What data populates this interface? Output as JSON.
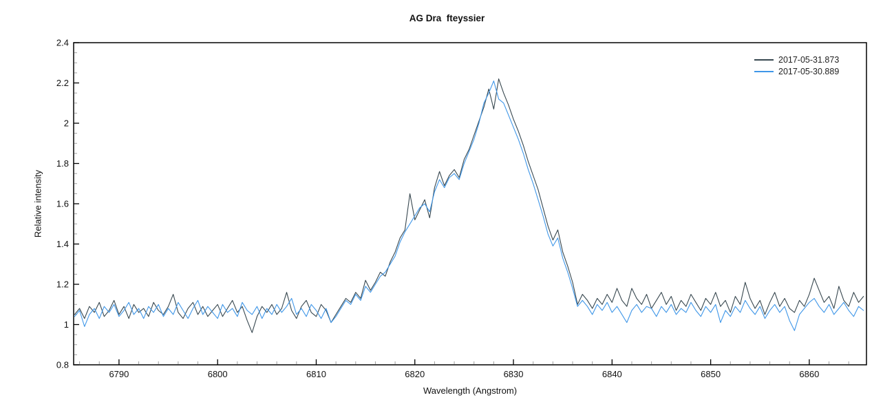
{
  "chart_data": {
    "type": "line",
    "title": "AG Dra  fteyssier",
    "xlabel": "Wavelength (Angstrom)",
    "ylabel": "Relative intensity",
    "xlim": [
      6785.4,
      6865.8
    ],
    "ylim": [
      0.8,
      2.4
    ],
    "x_major_ticks": [
      6790,
      6800,
      6810,
      6820,
      6830,
      6840,
      6850,
      6860
    ],
    "x_minor_step": 2,
    "y_major_ticks": [
      0.8,
      1,
      1.2,
      1.4,
      1.6,
      1.8,
      2,
      2.2,
      2.4
    ],
    "y_minor_step": 0.05,
    "grid": false,
    "legend_position": "top-right",
    "x_start": 6785.5,
    "x_step": 0.5,
    "series": [
      {
        "name": "2017-05-31.873",
        "color": "#37474F",
        "values": [
          1.05,
          1.08,
          1.03,
          1.09,
          1.06,
          1.11,
          1.04,
          1.07,
          1.12,
          1.05,
          1.09,
          1.03,
          1.1,
          1.06,
          1.08,
          1.04,
          1.11,
          1.07,
          1.05,
          1.09,
          1.15,
          1.06,
          1.03,
          1.08,
          1.11,
          1.05,
          1.09,
          1.04,
          1.07,
          1.1,
          1.04,
          1.08,
          1.12,
          1.06,
          1.09,
          1.02,
          0.96,
          1.04,
          1.09,
          1.06,
          1.1,
          1.05,
          1.08,
          1.16,
          1.07,
          1.03,
          1.09,
          1.12,
          1.06,
          1.04,
          1.1,
          1.07,
          1.01,
          1.05,
          1.09,
          1.13,
          1.11,
          1.16,
          1.13,
          1.22,
          1.17,
          1.21,
          1.26,
          1.24,
          1.31,
          1.36,
          1.43,
          1.47,
          1.65,
          1.52,
          1.57,
          1.62,
          1.53,
          1.68,
          1.76,
          1.69,
          1.74,
          1.77,
          1.73,
          1.82,
          1.87,
          1.94,
          2.01,
          2.08,
          2.17,
          2.07,
          2.22,
          2.15,
          2.09,
          2.02,
          1.96,
          1.89,
          1.81,
          1.74,
          1.67,
          1.58,
          1.49,
          1.42,
          1.47,
          1.36,
          1.29,
          1.21,
          1.1,
          1.15,
          1.12,
          1.08,
          1.13,
          1.1,
          1.15,
          1.11,
          1.18,
          1.12,
          1.09,
          1.18,
          1.13,
          1.1,
          1.15,
          1.08,
          1.12,
          1.16,
          1.1,
          1.14,
          1.07,
          1.12,
          1.09,
          1.15,
          1.11,
          1.07,
          1.13,
          1.1,
          1.16,
          1.09,
          1.12,
          1.06,
          1.14,
          1.1,
          1.21,
          1.13,
          1.08,
          1.12,
          1.05,
          1.11,
          1.16,
          1.09,
          1.13,
          1.08,
          1.06,
          1.12,
          1.09,
          1.15,
          1.23,
          1.17,
          1.11,
          1.14,
          1.08,
          1.19,
          1.12,
          1.09,
          1.16,
          1.11,
          1.14
        ]
      },
      {
        "name": "2017-05-30.889",
        "color": "#3E96E8",
        "values": [
          1.04,
          1.07,
          0.99,
          1.05,
          1.08,
          1.03,
          1.09,
          1.06,
          1.1,
          1.04,
          1.07,
          1.11,
          1.05,
          1.08,
          1.03,
          1.09,
          1.06,
          1.1,
          1.04,
          1.08,
          1.05,
          1.11,
          1.07,
          1.03,
          1.08,
          1.12,
          1.05,
          1.09,
          1.06,
          1.03,
          1.1,
          1.06,
          1.08,
          1.04,
          1.11,
          1.07,
          1.05,
          1.09,
          1.03,
          1.08,
          1.05,
          1.1,
          1.06,
          1.09,
          1.13,
          1.05,
          1.08,
          1.04,
          1.1,
          1.07,
          1.03,
          1.08,
          1.01,
          1.04,
          1.08,
          1.12,
          1.1,
          1.15,
          1.12,
          1.19,
          1.16,
          1.2,
          1.24,
          1.26,
          1.3,
          1.34,
          1.41,
          1.46,
          1.5,
          1.54,
          1.58,
          1.6,
          1.56,
          1.66,
          1.72,
          1.68,
          1.73,
          1.75,
          1.72,
          1.8,
          1.86,
          1.92,
          2.0,
          2.1,
          2.15,
          2.21,
          2.12,
          2.1,
          2.04,
          1.98,
          1.92,
          1.85,
          1.77,
          1.7,
          1.62,
          1.54,
          1.45,
          1.39,
          1.43,
          1.33,
          1.26,
          1.18,
          1.09,
          1.12,
          1.09,
          1.05,
          1.1,
          1.07,
          1.11,
          1.06,
          1.09,
          1.05,
          1.01,
          1.07,
          1.1,
          1.06,
          1.09,
          1.08,
          1.04,
          1.09,
          1.06,
          1.1,
          1.05,
          1.08,
          1.06,
          1.11,
          1.07,
          1.04,
          1.09,
          1.06,
          1.1,
          1.01,
          1.07,
          1.04,
          1.09,
          1.06,
          1.12,
          1.08,
          1.05,
          1.09,
          1.03,
          1.07,
          1.1,
          1.06,
          1.09,
          1.02,
          0.97,
          1.05,
          1.08,
          1.11,
          1.13,
          1.09,
          1.06,
          1.1,
          1.05,
          1.08,
          1.11,
          1.07,
          1.04,
          1.09,
          1.07
        ]
      }
    ]
  },
  "colors": {
    "axis": "#000000",
    "minor_tick": "#9E9E9E",
    "text": "#111111",
    "background": "#FFFFFF"
  }
}
